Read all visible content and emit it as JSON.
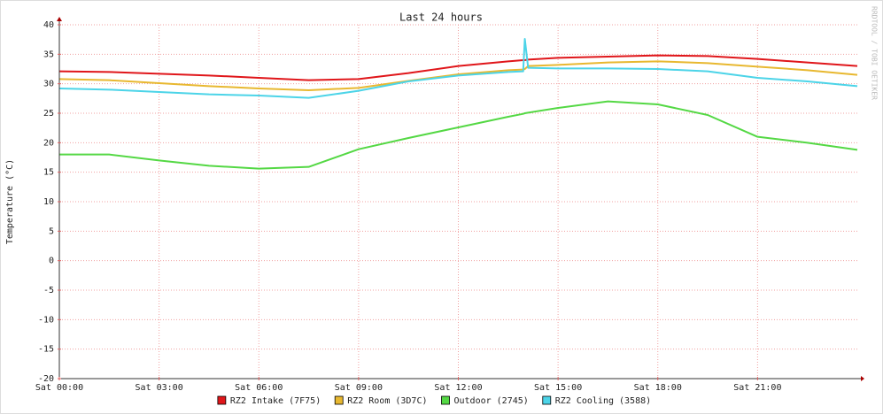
{
  "chart_data": {
    "type": "line",
    "title": "Last 24 hours",
    "y_label": "Temperature (°C)",
    "watermark": "RRDTOOL / TOBI OETIKER",
    "x": [
      0,
      1.5,
      3,
      4.5,
      6,
      7.5,
      9,
      10.5,
      12,
      13.5,
      13.95,
      14.0,
      14.1,
      15,
      16.5,
      18,
      19.5,
      21,
      22.5,
      24
    ],
    "xlim": [
      0,
      24
    ],
    "xticks": [
      {
        "value": 0,
        "label": "Sat 00:00"
      },
      {
        "value": 3,
        "label": "Sat 03:00"
      },
      {
        "value": 6,
        "label": "Sat 06:00"
      },
      {
        "value": 9,
        "label": "Sat 09:00"
      },
      {
        "value": 12,
        "label": "Sat 12:00"
      },
      {
        "value": 15,
        "label": "Sat 15:00"
      },
      {
        "value": 18,
        "label": "Sat 18:00"
      },
      {
        "value": 21,
        "label": "Sat 21:00"
      }
    ],
    "ylim": [
      -20,
      40
    ],
    "yticks": [
      -20,
      -15,
      -10,
      -5,
      0,
      5,
      10,
      15,
      20,
      25,
      30,
      35,
      40
    ],
    "grid": true,
    "legend_position": "bottom",
    "series": [
      {
        "name": "RZ2 Intake (7F75)",
        "color": "#e0161a",
        "values": [
          32.1,
          32.0,
          31.7,
          31.4,
          31.0,
          30.6,
          30.8,
          31.8,
          33.0,
          33.8,
          34.0,
          34.0,
          34.1,
          34.4,
          34.6,
          34.8,
          34.7,
          34.2,
          33.6,
          33.0
        ]
      },
      {
        "name": "RZ2 Room (3D7C)",
        "color": "#e8b830",
        "values": [
          30.8,
          30.6,
          30.1,
          29.6,
          29.2,
          28.9,
          29.3,
          30.5,
          31.6,
          32.3,
          32.4,
          32.5,
          33.0,
          33.2,
          33.6,
          33.8,
          33.5,
          32.9,
          32.3,
          31.5
        ]
      },
      {
        "name": "Outdoor (2745)",
        "color": "#54d844",
        "values": [
          18.0,
          18.0,
          17.0,
          16.1,
          15.6,
          15.9,
          18.9,
          20.8,
          22.6,
          24.4,
          24.9,
          25.0,
          25.1,
          25.9,
          27.0,
          26.5,
          24.7,
          21.0,
          20.0,
          18.8
        ]
      },
      {
        "name": "RZ2 Cooling (3588)",
        "color": "#4cd4e8",
        "values": [
          29.2,
          29.0,
          28.6,
          28.2,
          28.0,
          27.6,
          28.8,
          30.4,
          31.4,
          32.0,
          32.1,
          37.6,
          32.7,
          32.6,
          32.6,
          32.5,
          32.1,
          31.0,
          30.4,
          29.6
        ]
      }
    ]
  }
}
